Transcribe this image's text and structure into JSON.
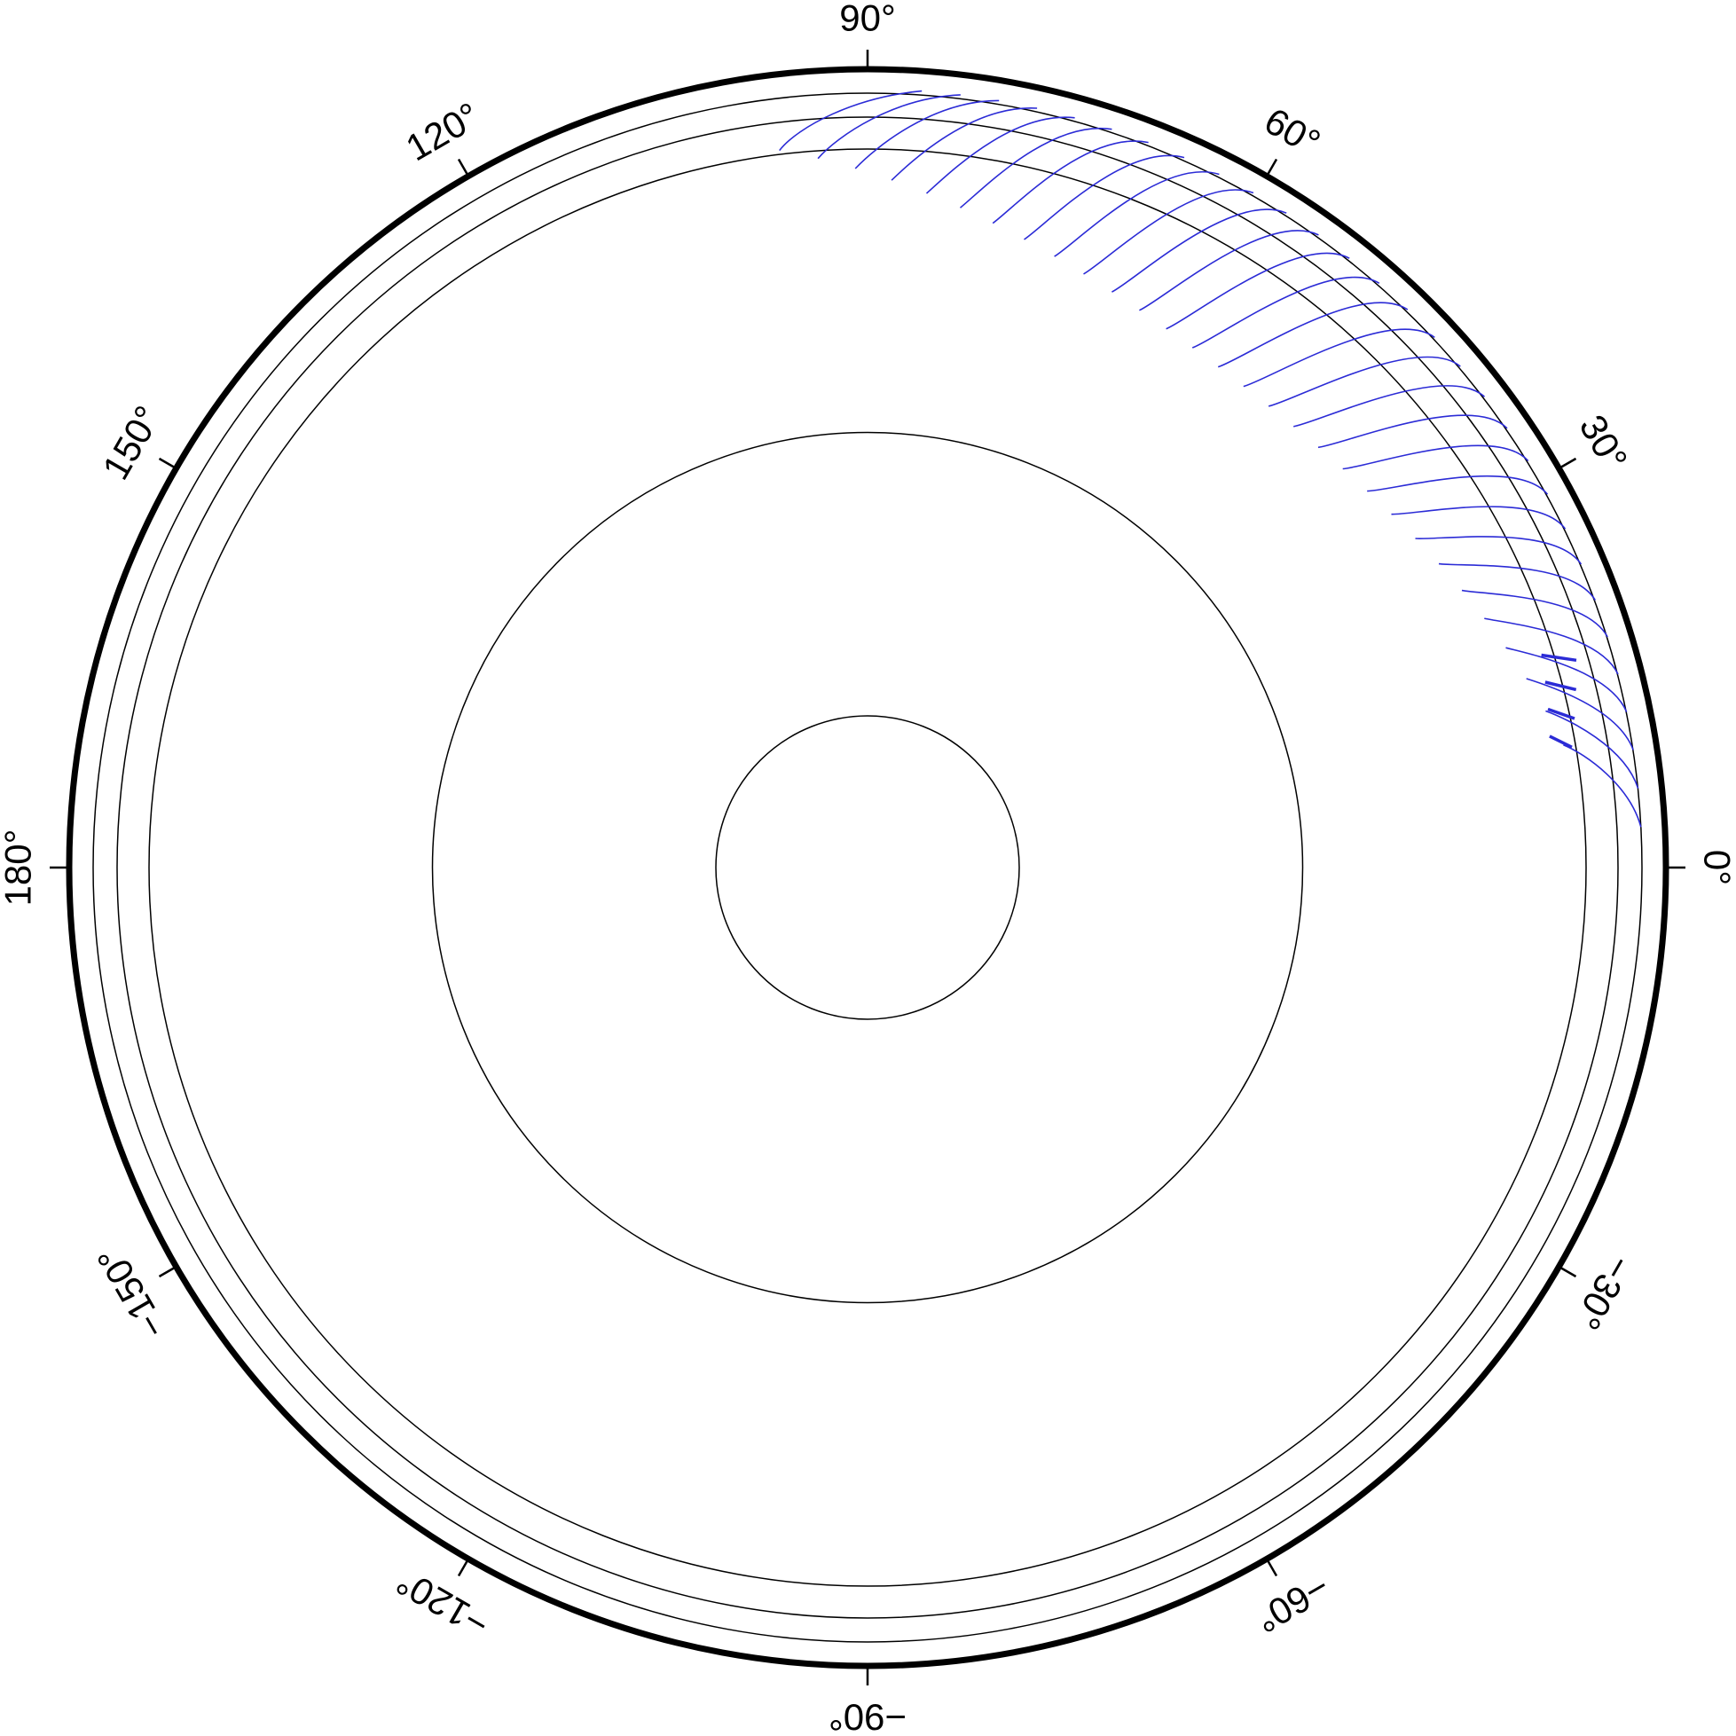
{
  "map": {
    "projection": "polar (azimuthal)",
    "colors": {
      "frame": "#000000",
      "gridlines": "#000000",
      "vectors": "#2b2bd6",
      "background": "#ffffff"
    },
    "longitude_ticks": [
      {
        "angle": 0,
        "label": "0°"
      },
      {
        "angle": 30,
        "label": "30°"
      },
      {
        "angle": 60,
        "label": "60°"
      },
      {
        "angle": 90,
        "label": "90°"
      },
      {
        "angle": 120,
        "label": "120°"
      },
      {
        "angle": 150,
        "label": "150°"
      },
      {
        "angle": 180,
        "label": "180°"
      },
      {
        "angle": -150,
        "label": "−150°"
      },
      {
        "angle": -120,
        "label": "−120°"
      },
      {
        "angle": -90,
        "label": "−90°"
      },
      {
        "angle": -60,
        "label": "−60°"
      },
      {
        "angle": -30,
        "label": "−30°"
      }
    ],
    "grid_circles_fraction_of_radius": [
      0.19,
      0.545,
      0.9,
      0.94,
      0.97
    ],
    "vector_field": {
      "sector": "0° to 90°",
      "count": 30,
      "bold_segments": 4
    }
  }
}
